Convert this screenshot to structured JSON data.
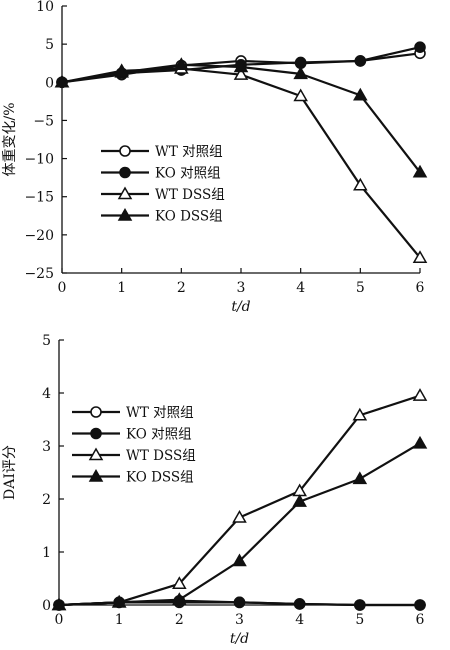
{
  "chart_data": [
    {
      "type": "line",
      "xlabel": "t/d",
      "ylabel": "体重变化/%",
      "xlim": [
        0,
        6
      ],
      "ylim": [
        -25,
        10
      ],
      "x_ticks": [
        "0",
        "1",
        "2",
        "3",
        "4",
        "5",
        "6"
      ],
      "y_ticks": [
        "10",
        "5",
        "0",
        "−5",
        "−10",
        "−15",
        "−20",
        "−25"
      ],
      "legend_position": "center-left",
      "series": [
        {
          "name": "WT 对照组",
          "marker": "open-circle",
          "x": [
            0,
            1,
            2,
            3,
            4,
            5,
            6
          ],
          "values": [
            0,
            1.0,
            2.2,
            2.8,
            2.5,
            2.8,
            3.8
          ]
        },
        {
          "name": "KO 对照组",
          "marker": "filled-circle",
          "x": [
            0,
            1,
            2,
            3,
            4,
            5,
            6
          ],
          "values": [
            0,
            1.2,
            1.6,
            2.3,
            2.6,
            2.8,
            4.6
          ]
        },
        {
          "name": "WT DSS组",
          "marker": "open-triangle",
          "x": [
            0,
            1,
            2,
            3,
            4,
            5,
            6
          ],
          "values": [
            0,
            1.5,
            1.8,
            1.0,
            -1.8,
            -13.5,
            -23.0
          ]
        },
        {
          "name": "KO DSS组",
          "marker": "filled-triangle",
          "x": [
            0,
            1,
            2,
            3,
            4,
            5,
            6
          ],
          "values": [
            0,
            1.3,
            2.3,
            2.0,
            1.1,
            -1.7,
            -11.8
          ]
        }
      ]
    },
    {
      "type": "line",
      "xlabel": "t/d",
      "ylabel": "DAI评分",
      "xlim": [
        0,
        6
      ],
      "ylim": [
        0,
        5
      ],
      "x_ticks": [
        "0",
        "1",
        "2",
        "3",
        "4",
        "5",
        "6"
      ],
      "y_ticks": [
        "5",
        "4",
        "3",
        "2",
        "1",
        "0"
      ],
      "legend_position": "upper-left",
      "series": [
        {
          "name": "WT 对照组",
          "marker": "open-circle",
          "x": [
            0,
            1,
            2,
            3,
            4,
            5,
            6
          ],
          "values": [
            0,
            0.05,
            0.05,
            0.05,
            0.02,
            0,
            0
          ]
        },
        {
          "name": "KO 对照组",
          "marker": "filled-circle",
          "x": [
            0,
            1,
            2,
            3,
            4,
            5,
            6
          ],
          "values": [
            0,
            0.05,
            0.08,
            0.05,
            0.02,
            0,
            0
          ]
        },
        {
          "name": "WT DSS组",
          "marker": "open-triangle",
          "x": [
            0,
            1,
            2,
            3,
            4,
            5,
            6
          ],
          "values": [
            0,
            0.05,
            0.4,
            1.65,
            2.15,
            3.58,
            3.95
          ]
        },
        {
          "name": "KO DSS组",
          "marker": "filled-triangle",
          "x": [
            0,
            1,
            2,
            3,
            4,
            5,
            6
          ],
          "values": [
            0,
            0.05,
            0.1,
            0.83,
            1.95,
            2.38,
            3.05
          ]
        }
      ]
    }
  ]
}
